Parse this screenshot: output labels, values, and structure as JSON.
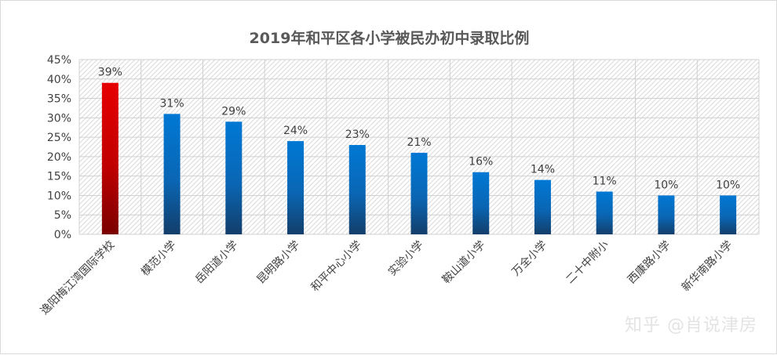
{
  "watermark": "知乎 @肖说津房",
  "colors": {
    "highlight_top": "#e60000",
    "highlight_bottom": "#7a0000",
    "bar_top": "#0078d4",
    "bar_bottom": "#123e6a",
    "grid": "#d0d0d0",
    "hatch": "#dadada"
  },
  "chart_data": {
    "type": "bar",
    "title": "2019年和平区各小学被民办初中录取比例",
    "xlabel": "",
    "ylabel": "",
    "ylim": [
      0,
      45
    ],
    "yticks": [
      0,
      5,
      10,
      15,
      20,
      25,
      30,
      35,
      40,
      45
    ],
    "ytick_labels": [
      "0%",
      "5%",
      "10%",
      "15%",
      "20%",
      "25%",
      "30%",
      "35%",
      "40%",
      "45%"
    ],
    "categories": [
      "逸阳梅江湾国际学校",
      "模范小学",
      "岳阳道小学",
      "昆明路小学",
      "和平中心小学",
      "实验小学",
      "鞍山道小学",
      "万全小学",
      "二十中附小",
      "西康路小学",
      "新华南路小学"
    ],
    "values": [
      39,
      31,
      29,
      24,
      23,
      21,
      16,
      14,
      11,
      10,
      10
    ],
    "value_labels": [
      "39%",
      "31%",
      "29%",
      "24%",
      "23%",
      "21%",
      "16%",
      "14%",
      "11%",
      "10%",
      "10%"
    ],
    "highlight_index": 0,
    "grid": true,
    "legend": "none"
  }
}
